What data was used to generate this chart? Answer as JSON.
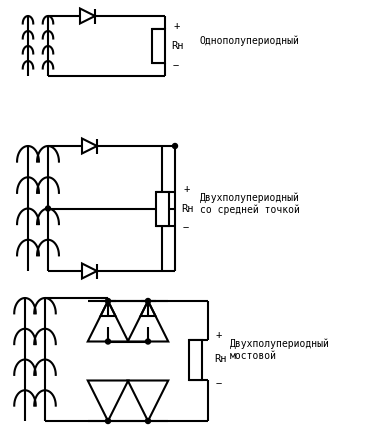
{
  "bg_color": "#ffffff",
  "line_color": "#000000",
  "line_width": 1.5,
  "font_family": "monospace",
  "font_size": 7.5,
  "label1": "Однополупериодный",
  "label2": "Двухполупериодный\nсо средней точкой",
  "label3": "Двухполупериодный\nмостовой",
  "rh_label": "Rн",
  "plus": "+",
  "minus": "−"
}
